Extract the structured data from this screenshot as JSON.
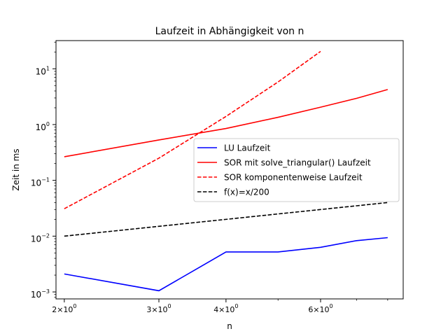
{
  "chart_data": {
    "type": "line",
    "title": "Laufzeit in Abhängigkeit von n",
    "xlabel": "n",
    "ylabel": "Zeit in ms",
    "xscale": "log",
    "yscale": "log",
    "xlim": [
      1.93,
      8.55
    ],
    "ylim": [
      0.00075,
      32
    ],
    "grid": false,
    "legend_position": "center-right",
    "x_ticks": [
      {
        "value": 2,
        "base": "2",
        "exp": "0"
      },
      {
        "value": 3,
        "base": "3",
        "exp": "0"
      },
      {
        "value": 4,
        "base": "4",
        "exp": "0"
      },
      {
        "value": 6,
        "base": "6",
        "exp": "0"
      }
    ],
    "x_minor_ticks": [
      5,
      7,
      8
    ],
    "y_ticks": [
      {
        "value": 0.001,
        "base": "10",
        "exp": "−3"
      },
      {
        "value": 0.01,
        "base": "10",
        "exp": "−2"
      },
      {
        "value": 0.1,
        "base": "10",
        "exp": "−1"
      },
      {
        "value": 1,
        "base": "10",
        "exp": "0"
      },
      {
        "value": 10,
        "base": "10",
        "exp": "1"
      }
    ],
    "series": [
      {
        "name": "LU Laufzeit",
        "color": "#0000ff",
        "dash": "solid",
        "x": [
          2,
          3,
          4,
          5,
          6,
          7,
          8
        ],
        "y": [
          0.0021,
          0.00105,
          0.0052,
          0.0052,
          0.0063,
          0.0083,
          0.0094
        ]
      },
      {
        "name": "SOR mit solve_triangular() Laufzeit",
        "color": "#ff0000",
        "dash": "solid",
        "x": [
          2,
          3,
          4,
          5,
          6,
          7,
          8
        ],
        "y": [
          0.265,
          0.53,
          0.85,
          1.35,
          2.05,
          2.95,
          4.25
        ]
      },
      {
        "name": "SOR komponentenweise Laufzeit",
        "color": "#ff0000",
        "dash": "dashed",
        "x": [
          2,
          3,
          4,
          5,
          6
        ],
        "y": [
          0.031,
          0.25,
          1.4,
          5.8,
          20.5
        ]
      },
      {
        "name": "f(x)=x/200",
        "color": "#000000",
        "dash": "dashed",
        "x": [
          2,
          3,
          4,
          5,
          6,
          7,
          8
        ],
        "y": [
          0.01,
          0.015,
          0.02,
          0.025,
          0.03,
          0.035,
          0.04
        ]
      }
    ]
  }
}
